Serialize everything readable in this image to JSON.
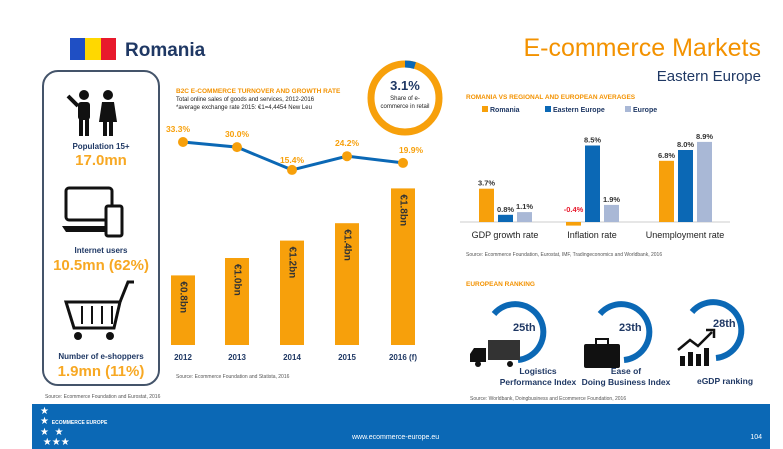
{
  "header": {
    "country": "Romania",
    "title": "E-commerce Markets",
    "subtitle": "Eastern Europe",
    "flag_colors": [
      "#1f4fc4",
      "#ffd800",
      "#e8192c"
    ]
  },
  "left_panel": {
    "items": [
      {
        "icon": "people-icon",
        "label": "Population 15+",
        "value": "17.0mn"
      },
      {
        "icon": "laptop-phone-icon",
        "label": "Internet users",
        "value": "10.5mn (62%)"
      },
      {
        "icon": "shopping-cart-icon",
        "label": "Number of e-shoppers",
        "value": "1.9mn (11%)"
      }
    ],
    "source": "Source: Ecommerce Foundation and Eurostat, 2016"
  },
  "turnover": {
    "heading": "B2C E-COMMERCE TURNOVER AND GROWTH RATE",
    "desc1": "Total online sales of goods and services, 2012-2016",
    "desc2": "*average exchange rate 2015: €1=4,4454 New Leu",
    "source": "Source: Ecommerce Foundation and Statista, 2016"
  },
  "share": {
    "value": "3.1%",
    "label": "Share of e-commerce in retail",
    "fraction": 0.031
  },
  "chart_data": [
    {
      "type": "bar",
      "categories": [
        "2012",
        "2013",
        "2014",
        "2015",
        "2016 (f)"
      ],
      "values": [
        0.8,
        1.0,
        1.2,
        1.4,
        1.8
      ],
      "labels": [
        "€0.8bn",
        "€1.0bn",
        "€1.2bn",
        "€1.4bn",
        "€1.8bn"
      ],
      "unit": "€bn",
      "color": "#f7a00b",
      "growth": {
        "type": "line",
        "values": [
          33.3,
          30.0,
          15.4,
          24.2,
          19.9
        ],
        "labels": [
          "33.3%",
          "30.0%",
          "15.4%",
          "24.2%",
          "19.9%"
        ],
        "line_color": "#0b68b5",
        "marker_color": "#f7a00b"
      }
    },
    {
      "type": "bar",
      "title": "ROMANIA VS REGIONAL AND EUROPEAN AVERAGES",
      "categories": [
        "GDP growth rate",
        "Inflation rate",
        "Unemployment rate"
      ],
      "legend": "top",
      "series": [
        {
          "name": "Romania",
          "color": "#f7a00b",
          "values": [
            3.7,
            -0.4,
            6.8
          ],
          "labels": [
            "3.7%",
            "-0.4%",
            "6.8%"
          ]
        },
        {
          "name": "Eastern Europe",
          "color": "#0b68b5",
          "values": [
            0.8,
            8.5,
            8.0
          ],
          "labels": [
            "0.8%",
            "8.5%",
            "8.0%"
          ]
        },
        {
          "name": "Europe",
          "color": "#a9b8d6",
          "values": [
            1.1,
            1.9,
            8.9
          ],
          "labels": [
            "1.1%",
            "1.9%",
            "8.9%"
          ]
        }
      ],
      "source": "Source: Ecommerce Foundation, Eurostat, IMF, Tradingeconomics and Worldbank, 2016"
    }
  ],
  "ranking": {
    "heading": "EUROPEAN RANKING",
    "items": [
      {
        "rank": "25th",
        "label1": "Logistics",
        "label2": "Performance Index",
        "icon": "truck-icon"
      },
      {
        "rank": "23th",
        "label1": "Ease of",
        "label2": "Doing Business Index",
        "icon": "briefcase-icon"
      },
      {
        "rank": "28th",
        "label1": "eGDP ranking",
        "label2": "",
        "icon": "growth-chart-icon"
      }
    ],
    "source": "Source: Worldbank, Doingbusiness and Ecommerce Foundation, 2016"
  },
  "footer": {
    "logo": "ECOMMERCE EUROPE",
    "url": "www.ecommerce-europe.eu",
    "page": "104"
  }
}
